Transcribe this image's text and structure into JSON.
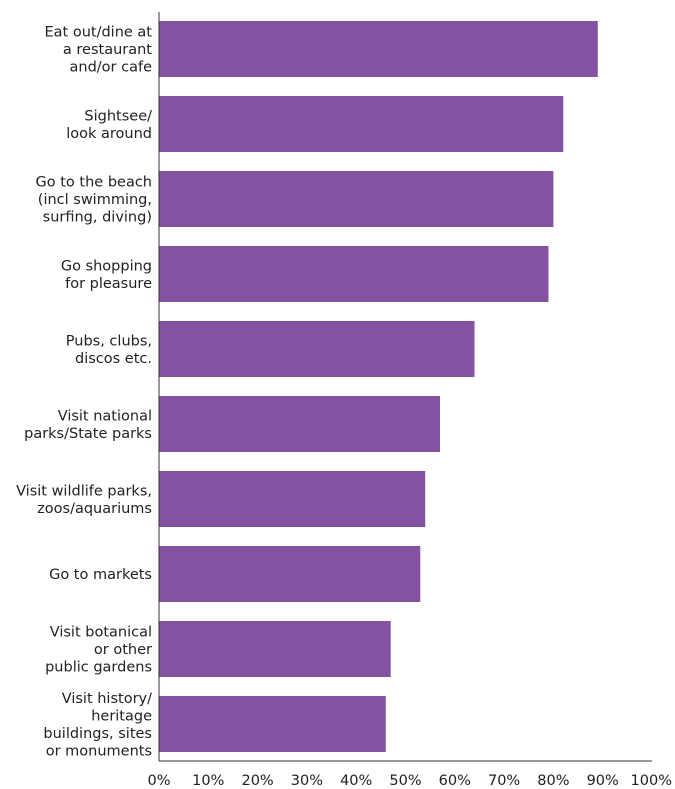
{
  "chart_data": {
    "type": "bar",
    "orientation": "horizontal",
    "title": "",
    "xlabel": "",
    "ylabel": "",
    "categories": [
      [
        "Eat out/dine at",
        "a restaurant",
        "and/or cafe"
      ],
      [
        "Sightsee/",
        "look around"
      ],
      [
        "Go to the beach",
        "(incl swimming,",
        "surfing, diving)"
      ],
      [
        "Go shopping",
        "for pleasure"
      ],
      [
        "Pubs, clubs,",
        "discos etc."
      ],
      [
        "Visit national",
        "parks/State parks"
      ],
      [
        "Visit wildlife parks,",
        "zoos/aquariums"
      ],
      [
        "Go to markets"
      ],
      [
        "Visit botanical",
        "or other",
        "public gardens"
      ],
      [
        "Visit history/",
        "heritage",
        "buildings, sites",
        "or monuments"
      ]
    ],
    "values": [
      89,
      82,
      80,
      79,
      64,
      57,
      54,
      53,
      47,
      46
    ],
    "xlim": [
      0,
      100
    ],
    "x_ticks": [
      0,
      10,
      20,
      30,
      40,
      50,
      60,
      70,
      80,
      90,
      100
    ],
    "tick_suffix": "%",
    "grid": false,
    "legend": "none",
    "bar_color": "#8552a1",
    "axis_color": "#333333",
    "text_color": "#222222"
  }
}
